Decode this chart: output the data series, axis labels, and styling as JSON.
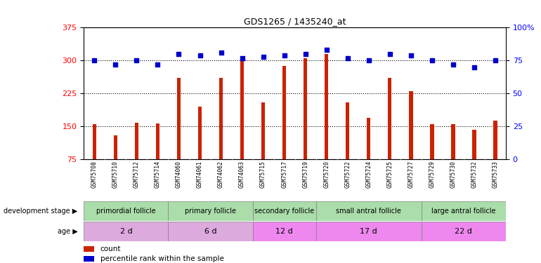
{
  "title": "GDS1265 / 1435240_at",
  "samples": [
    "GSM75708",
    "GSM75710",
    "GSM75712",
    "GSM75714",
    "GSM74060",
    "GSM74061",
    "GSM74062",
    "GSM74063",
    "GSM75715",
    "GSM75717",
    "GSM75719",
    "GSM75720",
    "GSM75722",
    "GSM75724",
    "GSM75725",
    "GSM75727",
    "GSM75729",
    "GSM75730",
    "GSM75732",
    "GSM75733"
  ],
  "counts": [
    155,
    130,
    158,
    157,
    260,
    195,
    260,
    302,
    205,
    288,
    305,
    315,
    205,
    170,
    260,
    230,
    155,
    155,
    142,
    163
  ],
  "percentiles": [
    75,
    72,
    75,
    72,
    80,
    79,
    81,
    77,
    78,
    79,
    80,
    83,
    77,
    75,
    80,
    79,
    75,
    72,
    70,
    75
  ],
  "ylim_left": [
    75,
    375
  ],
  "ylim_right": [
    0,
    100
  ],
  "yticks_left": [
    75,
    150,
    225,
    300,
    375
  ],
  "yticks_right": [
    0,
    25,
    50,
    75,
    100
  ],
  "bar_color": "#cc2200",
  "dot_color": "#0000cc",
  "g_labels": [
    "primordial follicle",
    "primary follicle",
    "secondary follicle",
    "small antral follicle",
    "large antral follicle"
  ],
  "g_starts": [
    0,
    4,
    8,
    11,
    16
  ],
  "g_ends": [
    4,
    8,
    11,
    16,
    20
  ],
  "g_color": "#aaddaa",
  "age_labels": [
    "2 d",
    "6 d",
    "12 d",
    "17 d",
    "22 d"
  ],
  "age_starts": [
    0,
    4,
    8,
    11,
    16
  ],
  "age_ends": [
    4,
    8,
    11,
    16,
    20
  ],
  "age_colors": [
    "#ddaadd",
    "#ddaadd",
    "#ee88ee",
    "#ee88ee",
    "#ee88ee"
  ],
  "background_color": "#ffffff",
  "tick_bg_color": "#cccccc"
}
